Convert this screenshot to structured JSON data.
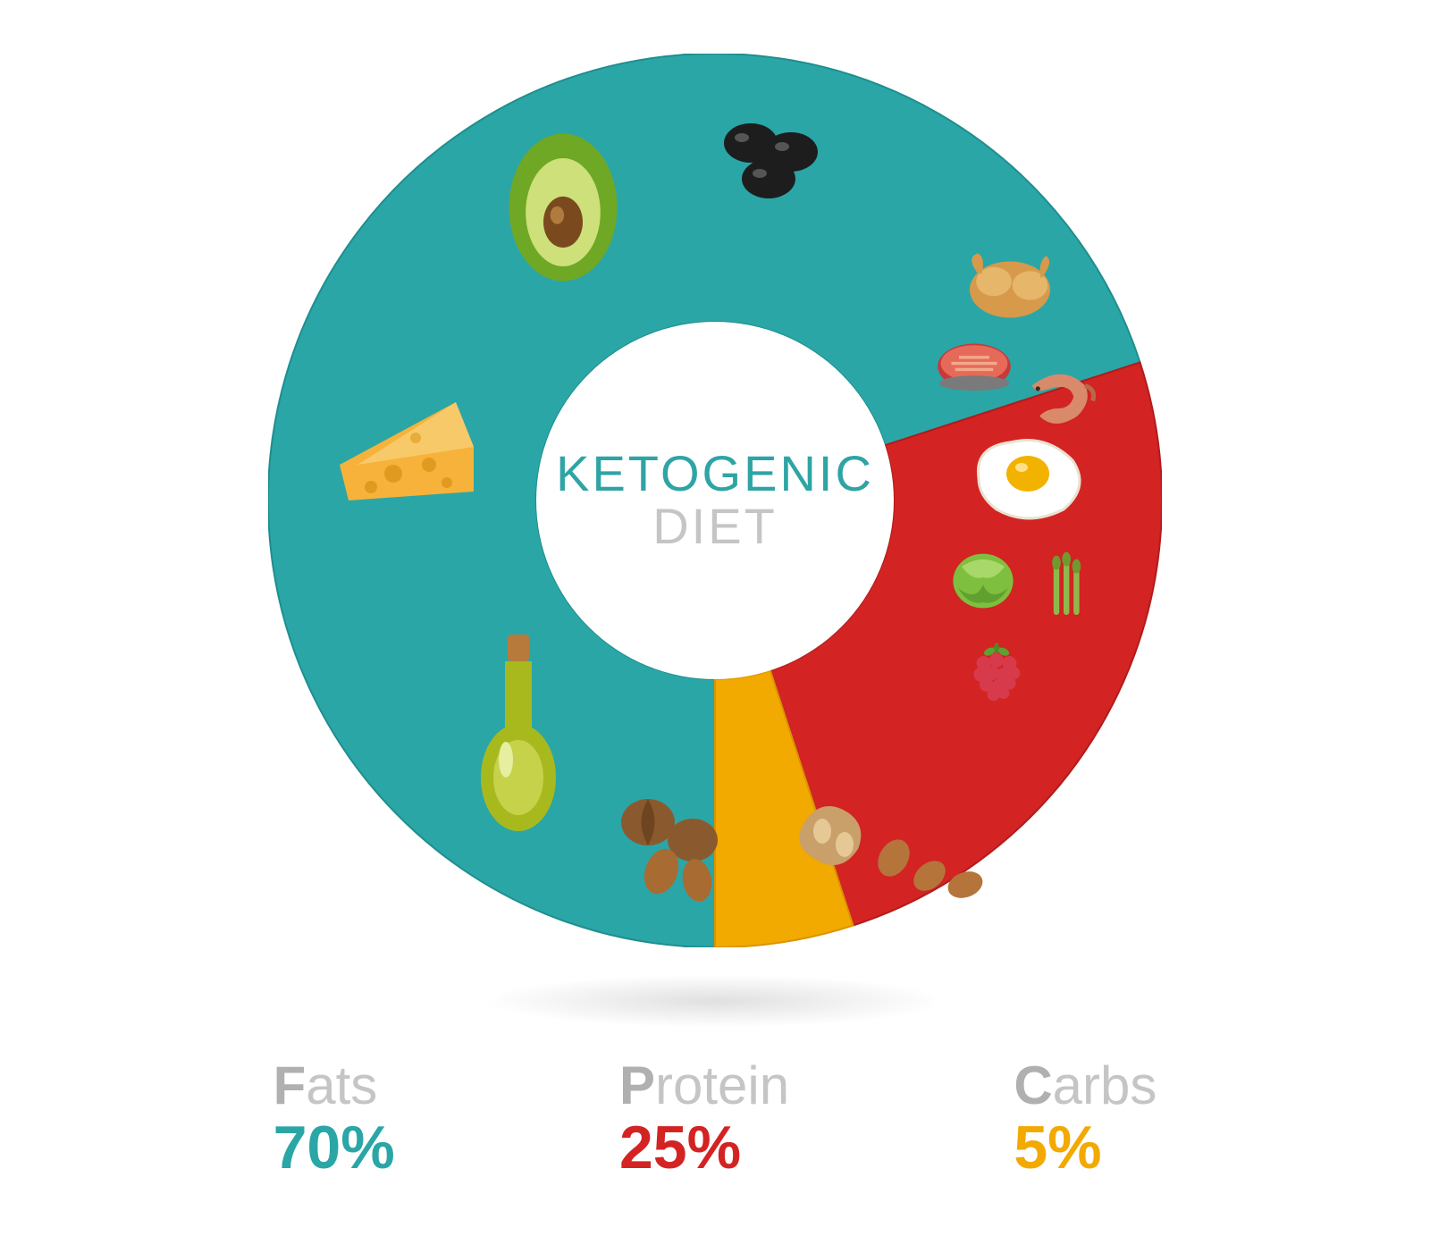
{
  "title": {
    "line1": "KETOGENIC",
    "line2": "DIET"
  },
  "donut": {
    "type": "pie",
    "outer_radius": 500,
    "inner_radius": 200,
    "background_color": "#ffffff",
    "title_color": "#2fa4a5",
    "subtitle_color": "#c5c5c5",
    "title_fontsize": 56,
    "slices": [
      {
        "key": "fats",
        "label": "Fats",
        "value": 70,
        "color": "#2aa6a7",
        "stroke": "#1f8e8f"
      },
      {
        "key": "protein",
        "label": "Protein",
        "value": 25,
        "color": "#d32323",
        "stroke": "#b11c1c"
      },
      {
        "key": "carbs",
        "label": "Carbs",
        "value": 5,
        "color": "#f2a900",
        "stroke": "#d99400"
      }
    ],
    "start_angle_deg": 90,
    "food_icons": {
      "fats": [
        "avocado",
        "olives",
        "cheese",
        "oil-bottle",
        "walnuts",
        "peanuts"
      ],
      "protein": [
        "chicken",
        "tuna-steak",
        "shrimp",
        "fried-egg"
      ],
      "carbs": [
        "cabbage",
        "asparagus",
        "raspberry"
      ]
    }
  },
  "legend": [
    {
      "label": "Fats",
      "value": "70%",
      "color": "#2aa6a7"
    },
    {
      "label": "Protein",
      "value": "25%",
      "color": "#d32323"
    },
    {
      "label": "Carbs",
      "value": "5%",
      "color": "#f2a900"
    }
  ],
  "legend_label_color": "#c5c5c5",
  "legend_label_fontsize": 60,
  "legend_value_fontsize": 68,
  "shadow_color": "rgba(0,0,0,0.12)"
}
